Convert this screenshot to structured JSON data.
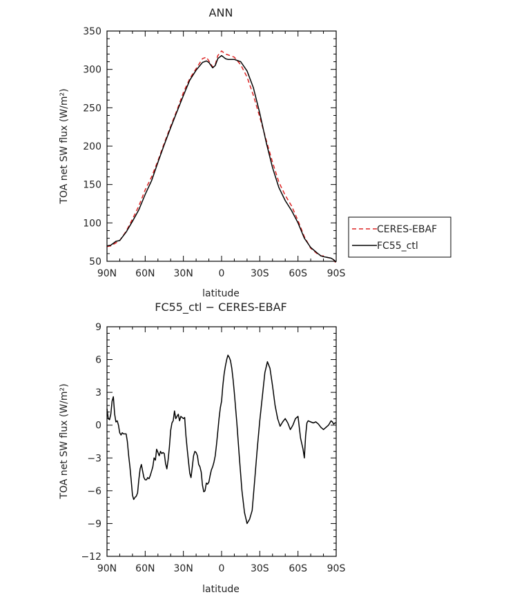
{
  "chart_data": [
    {
      "type": "line",
      "title": "ANN",
      "xlabel": "latitude",
      "ylabel": "TOA net SW flux (W/m²)",
      "xlim": [
        90,
        -90
      ],
      "ylim": [
        50,
        350
      ],
      "x_ticks": [
        {
          "v": 90,
          "label": "90N"
        },
        {
          "v": 60,
          "label": "60N"
        },
        {
          "v": 30,
          "label": "30N"
        },
        {
          "v": 0,
          "label": "0"
        },
        {
          "v": -30,
          "label": "30S"
        },
        {
          "v": -60,
          "label": "60S"
        },
        {
          "v": -90,
          "label": "90S"
        }
      ],
      "y_ticks": [
        {
          "v": 50,
          "label": "50"
        },
        {
          "v": 100,
          "label": "100"
        },
        {
          "v": 150,
          "label": "150"
        },
        {
          "v": 200,
          "label": "200"
        },
        {
          "v": 250,
          "label": "250"
        },
        {
          "v": 300,
          "label": "300"
        },
        {
          "v": 350,
          "label": "350"
        }
      ],
      "legend_position": "right",
      "series": [
        {
          "name": "CERES-EBAF",
          "color": "#dd2222",
          "dash": "dashed",
          "x": [
            90,
            87,
            83,
            80,
            75,
            70,
            65,
            60,
            55,
            50,
            45,
            40,
            35,
            30,
            25,
            20,
            15,
            12,
            10,
            7,
            5,
            3,
            0,
            -3,
            -5,
            -10,
            -15,
            -20,
            -25,
            -30,
            -35,
            -40,
            -45,
            -50,
            -55,
            -60,
            -65,
            -70,
            -75,
            -78,
            -80,
            -83,
            -86,
            -88,
            -90
          ],
          "y": [
            69,
            70,
            74,
            77,
            89,
            105,
            122,
            143,
            160,
            181,
            204,
            226,
            247,
            270,
            288,
            301,
            314,
            316,
            311,
            303,
            306,
            318,
            324,
            320,
            319,
            316,
            306,
            290,
            266,
            238,
            208,
            179,
            153,
            136,
            122,
            103,
            82,
            67,
            60,
            57,
            57,
            55,
            54,
            52,
            47
          ]
        },
        {
          "name": "FC55_ctl",
          "color": "#000000",
          "dash": "solid",
          "x": [
            90,
            87,
            83,
            80,
            75,
            70,
            65,
            60,
            55,
            50,
            45,
            40,
            35,
            30,
            25,
            20,
            15,
            12,
            10,
            7,
            5,
            3,
            0,
            -3,
            -5,
            -10,
            -15,
            -20,
            -25,
            -30,
            -35,
            -40,
            -45,
            -50,
            -55,
            -60,
            -65,
            -70,
            -75,
            -78,
            -80,
            -83,
            -86,
            -88,
            -90
          ],
          "y": [
            70,
            71,
            76,
            77,
            88,
            102,
            117,
            137,
            155,
            179,
            202,
            224,
            245,
            266,
            286,
            299,
            309,
            311,
            309,
            302,
            305,
            314,
            318,
            314,
            313,
            313,
            310,
            298,
            276,
            243,
            205,
            172,
            146,
            129,
            116,
            100,
            80,
            68,
            61,
            57,
            56,
            55,
            54,
            52,
            49
          ]
        }
      ]
    },
    {
      "type": "line",
      "title": "FC55_ctl − CERES-EBAF",
      "xlabel": "latitude",
      "ylabel": "TOA net SW flux (W/m²)",
      "xlim": [
        90,
        -90
      ],
      "ylim": [
        -12,
        9
      ],
      "x_ticks": [
        {
          "v": 90,
          "label": "90N"
        },
        {
          "v": 60,
          "label": "60N"
        },
        {
          "v": 30,
          "label": "30N"
        },
        {
          "v": 0,
          "label": "0"
        },
        {
          "v": -30,
          "label": "30S"
        },
        {
          "v": -60,
          "label": "60S"
        },
        {
          "v": -90,
          "label": "90S"
        }
      ],
      "y_ticks": [
        {
          "v": -12,
          "label": "−12"
        },
        {
          "v": -9,
          "label": "−9"
        },
        {
          "v": -6,
          "label": "−6"
        },
        {
          "v": -3,
          "label": "−3"
        },
        {
          "v": 0,
          "label": "0"
        },
        {
          "v": 3,
          "label": "3"
        },
        {
          "v": 6,
          "label": "6"
        },
        {
          "v": 9,
          "label": "9"
        }
      ],
      "series": [
        {
          "name": "",
          "color": "#000000",
          "dash": "solid",
          "x": [
            90,
            89,
            88,
            87,
            86,
            85,
            84,
            83,
            82,
            81,
            80,
            79,
            78,
            77,
            76,
            75,
            74,
            73,
            72,
            71,
            70,
            69,
            68,
            67,
            66,
            65,
            64,
            63,
            62,
            61,
            60,
            59,
            58,
            57,
            56,
            55,
            54,
            53,
            52,
            51,
            50,
            49,
            48,
            47,
            46,
            45,
            44,
            43,
            42,
            41,
            40,
            39,
            38,
            37,
            36,
            35,
            34,
            33,
            32,
            31,
            30,
            29,
            28,
            27,
            26,
            25,
            24,
            23,
            22,
            21,
            20,
            19,
            18,
            17,
            16,
            15,
            14,
            13,
            12,
            11,
            10,
            9,
            8,
            7,
            6,
            5,
            4,
            3,
            2,
            1,
            0,
            -1,
            -2,
            -3,
            -4,
            -5,
            -6,
            -7,
            -8,
            -9,
            -10,
            -12,
            -14,
            -16,
            -18,
            -20,
            -22,
            -24,
            -26,
            -28,
            -30,
            -32,
            -34,
            -36,
            -38,
            -40,
            -42,
            -44,
            -46,
            -48,
            -50,
            -52,
            -54,
            -56,
            -58,
            -60,
            -62,
            -64,
            -65,
            -66,
            -67,
            -68,
            -70,
            -72,
            -74,
            -76,
            -78,
            -80,
            -82,
            -84,
            -85,
            -86,
            -87,
            -88,
            -89,
            -90
          ],
          "y": [
            1.5,
            0.6,
            0.5,
            1.0,
            2.2,
            2.6,
            1.0,
            0.3,
            0.4,
            0.0,
            -0.7,
            -0.9,
            -0.7,
            -0.8,
            -0.8,
            -0.8,
            -1.5,
            -2.8,
            -3.8,
            -5.0,
            -6.4,
            -6.8,
            -6.6,
            -6.5,
            -6.2,
            -5.0,
            -4.0,
            -3.6,
            -4.2,
            -4.8,
            -5.0,
            -5.0,
            -4.8,
            -4.9,
            -4.6,
            -4.2,
            -3.8,
            -3.0,
            -3.2,
            -2.2,
            -2.5,
            -2.8,
            -2.4,
            -2.6,
            -2.5,
            -2.6,
            -3.5,
            -4.0,
            -3.2,
            -2.0,
            -0.5,
            0.2,
            0.4,
            1.3,
            0.6,
            0.8,
            1.0,
            0.4,
            0.8,
            0.7,
            0.6,
            0.7,
            -1.0,
            -2.2,
            -3.3,
            -4.4,
            -4.8,
            -3.8,
            -2.8,
            -2.4,
            -2.5,
            -2.8,
            -3.6,
            -3.8,
            -4.3,
            -5.5,
            -6.1,
            -6.0,
            -5.3,
            -5.4,
            -5.2,
            -4.6,
            -4.1,
            -3.8,
            -3.4,
            -2.8,
            -1.8,
            -0.6,
            0.6,
            1.6,
            2.2,
            3.6,
            4.7,
            5.4,
            6.0,
            6.4,
            6.2,
            5.9,
            5.2,
            4.2,
            3.0,
            0.2,
            -3.0,
            -6.0,
            -8.0,
            -9.0,
            -8.6,
            -7.8,
            -5.0,
            -2.2,
            0.4,
            2.6,
            4.8,
            5.8,
            5.2,
            3.6,
            1.8,
            0.6,
            -0.1,
            0.3,
            0.6,
            0.2,
            -0.4,
            0.0,
            0.6,
            0.8,
            -1.2,
            -2.2,
            -3.0,
            -1.0,
            0.2,
            0.4,
            0.3,
            0.2,
            0.3,
            0.1,
            -0.2,
            -0.4,
            -0.2,
            0.0,
            0.2,
            0.4,
            0.3,
            0.1,
            0.2,
            0.2
          ]
        }
      ]
    }
  ]
}
